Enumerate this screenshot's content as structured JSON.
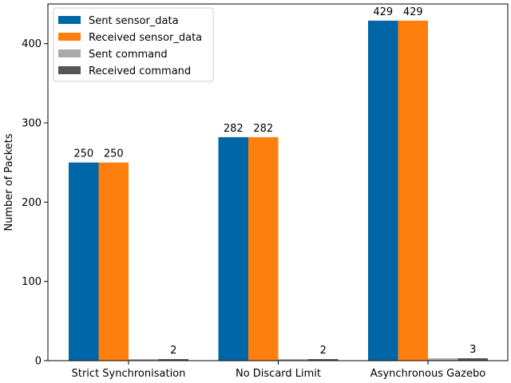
{
  "chart_data": {
    "type": "bar",
    "title": "",
    "xlabel": "",
    "ylabel": "Number of Packets",
    "ylim": [
      0,
      450
    ],
    "yticks": [
      0,
      100,
      200,
      300,
      400
    ],
    "categories": [
      "Strict Synchronisation",
      "No Discard Limit",
      "Asynchronous Gazebo"
    ],
    "series": [
      {
        "name": "Sent sensor_data",
        "color": "#0066a6",
        "values": [
          250,
          282,
          429
        ]
      },
      {
        "name": "Received sensor_data",
        "color": "#ff7f0e",
        "values": [
          250,
          282,
          429
        ]
      },
      {
        "name": "Sent command",
        "color": "#aaaaaa",
        "values": [
          2,
          2,
          3
        ]
      },
      {
        "name": "Received command",
        "color": "#555555",
        "values": [
          2,
          2,
          3
        ]
      }
    ],
    "data_labels": {
      "show_for_series": [
        0,
        1,
        3
      ],
      "values": [
        [
          250,
          282,
          429
        ],
        [
          250,
          282,
          429
        ],
        [
          2,
          2,
          3
        ]
      ]
    },
    "legend": {
      "position": "top-left"
    },
    "grid": false
  }
}
